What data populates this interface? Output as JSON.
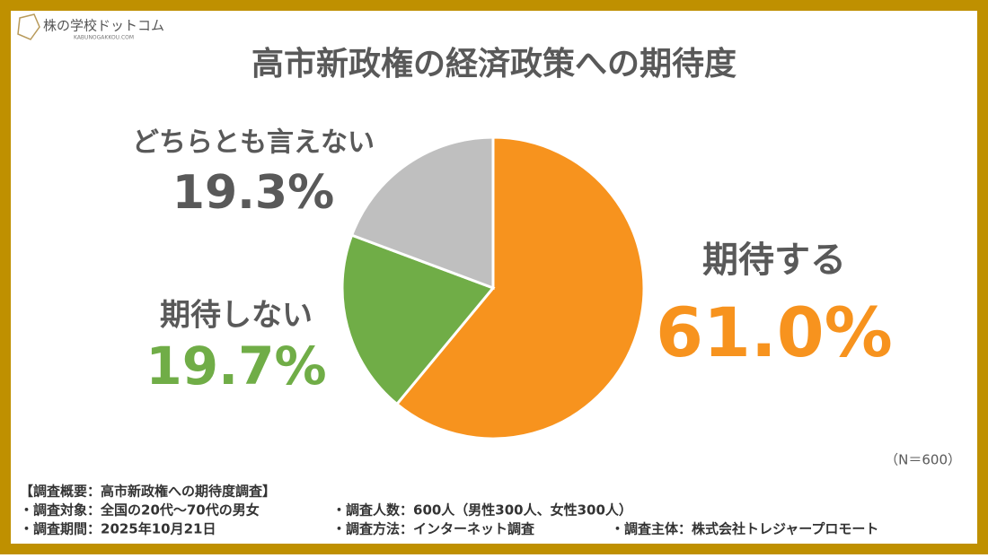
{
  "logo": {
    "name": "株の学校ドットコム",
    "url": "KABUNOGAKKOU.COM"
  },
  "chart_data": {
    "type": "pie",
    "title": "高市新政権の経済政策への期待度",
    "categories": [
      "期待する",
      "期待しない",
      "どちらとも言えない"
    ],
    "values": [
      61.0,
      19.7,
      19.3
    ],
    "value_labels": [
      "61.0%",
      "19.7%",
      "19.3%"
    ],
    "colors": [
      "#f7931e",
      "#70ad47",
      "#bfbfbf"
    ],
    "note": "（N＝600）"
  },
  "survey": {
    "heading": "【調査概要：高市新政権への期待度調査】",
    "rows": [
      [
        "・調査対象：全国の20代～70代の男女",
        "・調査人数：600人（男性300人、女性300人）"
      ],
      [
        "・調査期間：2025年10月21日",
        "・調査方法：インターネット調査",
        "・調査主体：株式会社トレジャープロモート"
      ]
    ]
  }
}
